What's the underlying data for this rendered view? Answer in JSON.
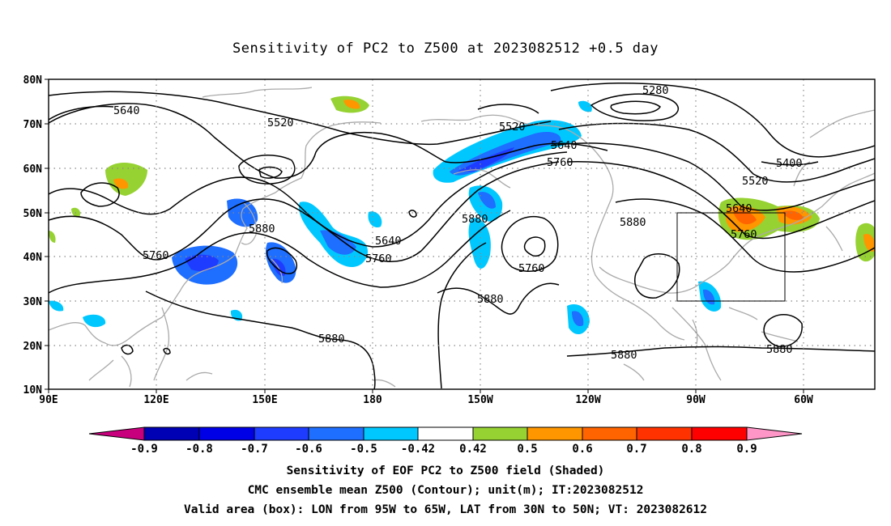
{
  "title": "Sensitivity of PC2 to Z500 at 2023082512 +0.5 day",
  "lat_labels": [
    "80N",
    "70N",
    "60N",
    "50N",
    "40N",
    "30N",
    "20N",
    "10N"
  ],
  "lon_labels": [
    "90E",
    "120E",
    "150E",
    "180",
    "150W",
    "120W",
    "90W",
    "60W"
  ],
  "contour_labels": [
    "5640",
    "5520",
    "5280",
    "5520",
    "5640",
    "5760",
    "5400",
    "5520",
    "5640",
    "5760",
    "5880",
    "5640",
    "5760",
    "5760",
    "5880",
    "5760",
    "5880",
    "5880",
    "5880",
    "5880",
    "5880"
  ],
  "colorbar": {
    "ticks": [
      "-0.9",
      "-0.8",
      "-0.7",
      "-0.6",
      "-0.5",
      "-0.42",
      "0.42",
      "0.5",
      "0.6",
      "0.7",
      "0.8",
      "0.9"
    ],
    "colors": [
      "#c8007d",
      "#0000b4",
      "#0000e6",
      "#1e3cff",
      "#1e6eff",
      "#0096ff",
      "#00c8ff",
      "#ffffff",
      "#96d232",
      "#ff9600",
      "#ff6400",
      "#ff3200",
      "#ff0000",
      "#ff96c8"
    ]
  },
  "valid_box": {
    "lon_from": "95W",
    "lon_to": "65W",
    "lat_from": "30N",
    "lat_to": "50N"
  },
  "footer": {
    "line1": "Sensitivity of EOF PC2 to Z500 field (Shaded)",
    "line2": "CMC ensemble mean Z500 (Contour); unit(m); IT:2023082512",
    "line3": "Valid area (box): LON from 95W to 65W, LAT from 30N to 50N; VT: 2023082612"
  }
}
